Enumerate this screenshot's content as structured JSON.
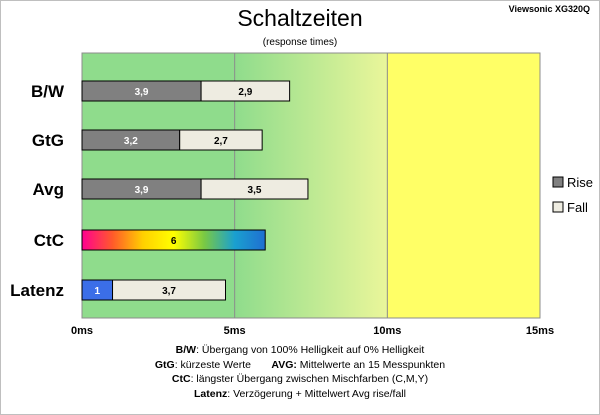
{
  "title": "Schaltzeiten",
  "subtitle": "(response times)",
  "model": "Viewsonic XG320Q",
  "notes": {
    "bw_key": "B/W",
    "bw_text": ":  Übergang von 100% Helligkeit auf 0% Helligkeit",
    "gtg_key": "GtG",
    "gtg_text": ": kürzeste  Werte",
    "avg_key": "AVG:",
    "avg_text": " Mittelwerte  an 15 Messpunkten",
    "ctc_key": "CtC",
    "ctc_text": ": längster Übergang  zwischen Mischfarben  (C,M,Y)",
    "latenz_key": "Latenz",
    "latenz_text": ": Verzögerung  + Mittelwert Avg rise/fall"
  },
  "chart_data": {
    "type": "bar",
    "orientation": "horizontal",
    "stacked": true,
    "categories": [
      "B/W",
      "GtG",
      "Avg",
      "CtC",
      "Latenz"
    ],
    "series": [
      {
        "name": "Rise",
        "color": "#808080",
        "values": [
          3.9,
          3.2,
          3.9,
          null,
          null
        ]
      },
      {
        "name": "Fall",
        "color": "#eeece1",
        "values": [
          2.9,
          2.7,
          3.5,
          null,
          3.7
        ]
      }
    ],
    "special_bars": [
      {
        "category": "CtC",
        "value": 6,
        "label": "6",
        "fill": "rainbow",
        "colors": [
          "#ff0090",
          "#ff5a2a",
          "#ffd000",
          "#ffff00",
          "#7ac943",
          "#1aa0d0",
          "#1f6fd1"
        ]
      },
      {
        "category": "Latenz",
        "value": 1,
        "label": "1",
        "color": "#3b6ee8"
      }
    ],
    "data_labels": {
      "B/W": [
        "3,9",
        "2,9"
      ],
      "GtG": [
        "3,2",
        "2,7"
      ],
      "Avg": [
        "3,9",
        "3,5"
      ],
      "CtC": [
        "6"
      ],
      "Latenz": [
        "1",
        "3,7"
      ]
    },
    "x_ticks": [
      "0ms",
      "5ms",
      "10ms",
      "15ms"
    ],
    "xlim": [
      0,
      15
    ],
    "grid": "vertical at 5ms steps",
    "background_zones": [
      {
        "from": 0,
        "to": 5,
        "color": "#8fdc8c"
      },
      {
        "from": 5,
        "to": 10,
        "colors": [
          "#8fdc8c",
          "#e8f59a"
        ]
      },
      {
        "from": 10,
        "to": 15,
        "color": "#ffff66"
      }
    ],
    "legend": [
      "Rise",
      "Fall"
    ],
    "legend_position": "right"
  }
}
